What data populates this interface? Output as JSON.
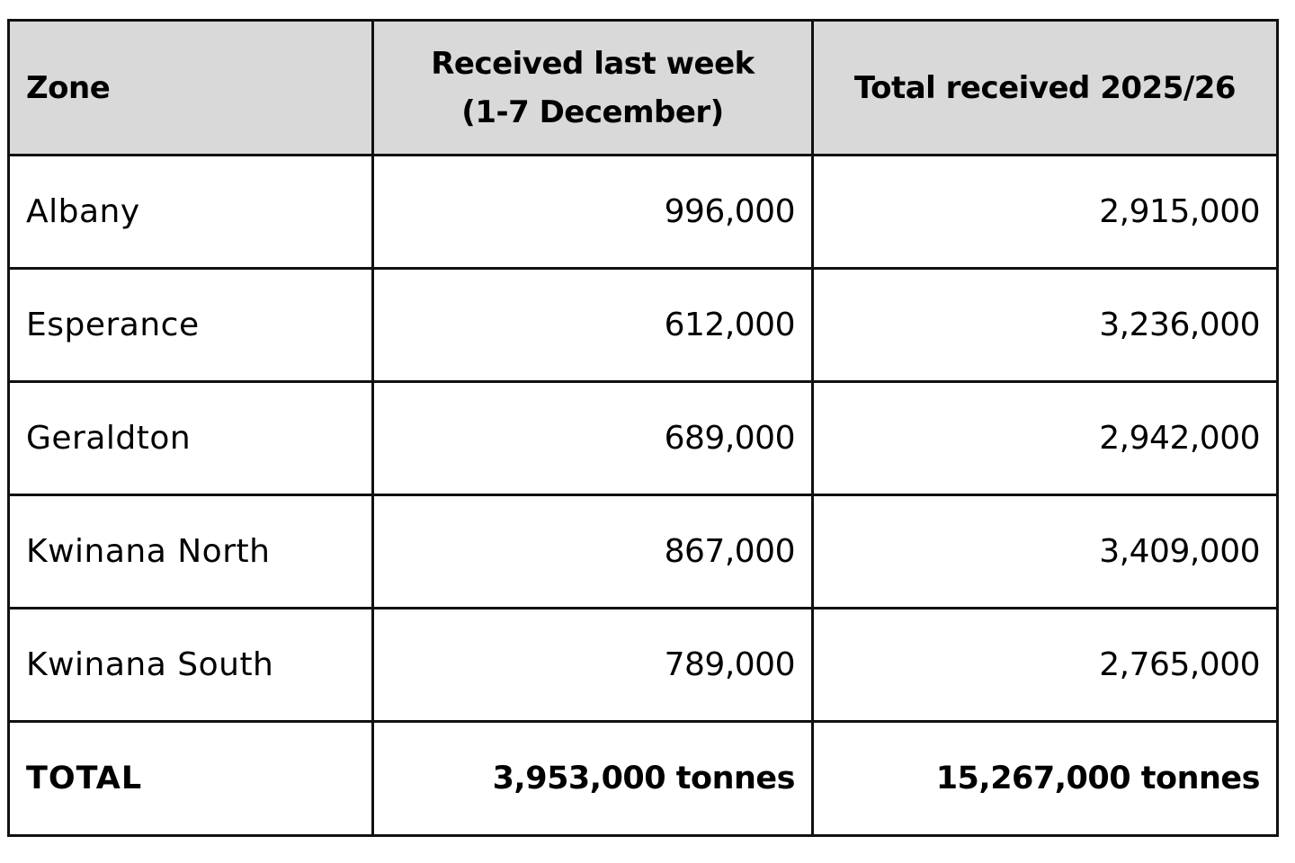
{
  "table": {
    "headers": {
      "zone": "Zone",
      "week_line1": "Received last week",
      "week_line2": "(1-7 December)",
      "season_total": "Total received 2025/26"
    },
    "rows": [
      {
        "zone": "Albany",
        "week": "996,000",
        "season": "2,915,000"
      },
      {
        "zone": "Esperance",
        "week": "612,000",
        "season": "3,236,000"
      },
      {
        "zone": "Geraldton",
        "week": "689,000",
        "season": "2,942,000"
      },
      {
        "zone": "Kwinana North",
        "week": "867,000",
        "season": "3,409,000"
      },
      {
        "zone": "Kwinana South",
        "week": "789,000",
        "season": "2,765,000"
      }
    ],
    "total": {
      "label": "TOTAL",
      "week": "3,953,000 tonnes",
      "season": "15,267,000 tonnes"
    },
    "colors": {
      "header_bg": "#d9d9d9",
      "border": "#111111",
      "text": "#000000",
      "cell_bg": "#ffffff"
    }
  }
}
